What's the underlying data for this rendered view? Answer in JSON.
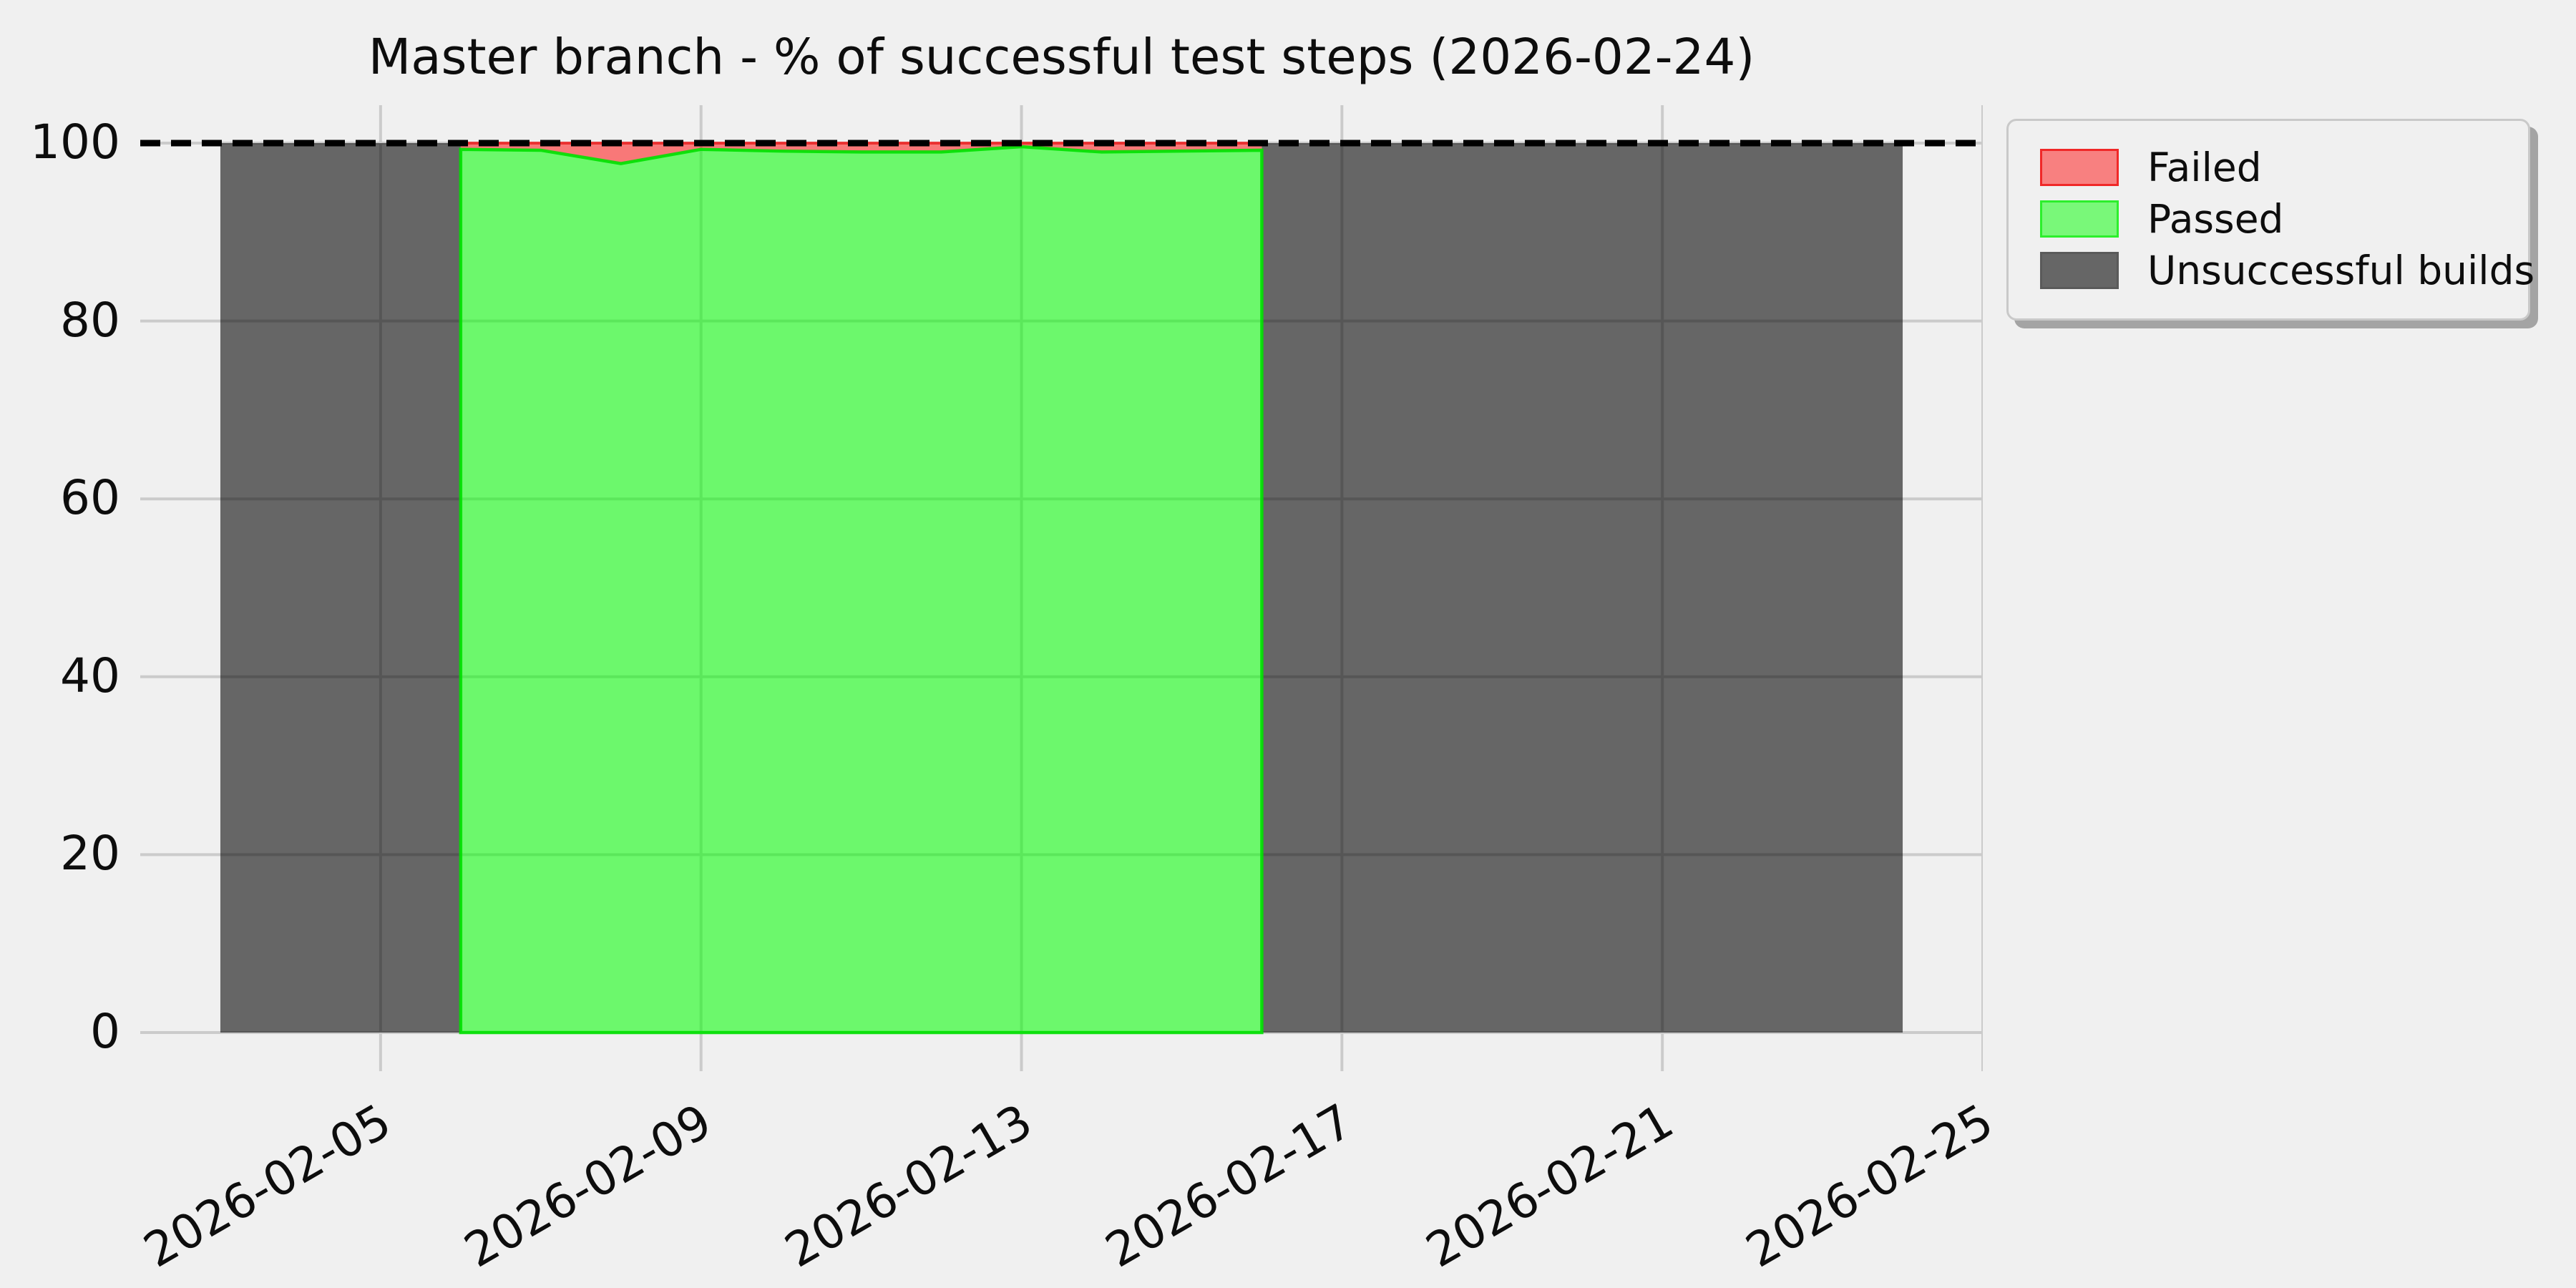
{
  "title": "Master branch - % of successful test steps (2026-02-24)",
  "chart_data": {
    "type": "area",
    "title": "Master branch - % of successful test steps (2026-02-24)",
    "x_axis": {
      "start_date": "2026-02-02",
      "end_date": "2026-02-25",
      "tick_labels": [
        "2026-02-05",
        "2026-02-09",
        "2026-02-13",
        "2026-02-17",
        "2026-02-21",
        "2026-02-25"
      ],
      "label_rotation_deg": 30
    },
    "y_axis": {
      "min": 0,
      "max": 104.3,
      "tick_values": [
        0,
        20,
        40,
        60,
        80,
        100
      ],
      "tick_labels": [
        "0",
        "20",
        "40",
        "60",
        "80",
        "100"
      ]
    },
    "grid": true,
    "grid_color": "#cbcbcb",
    "background_color": "#f0f0f0",
    "target_line": {
      "value": 100,
      "style": "dashed",
      "color": "#000000"
    },
    "series": [
      {
        "name": "Unsuccessful builds",
        "type": "span",
        "fill": "rgba(0,0,0,0.575)",
        "spans": [
          {
            "from": "2026-02-03",
            "to": "2026-02-06",
            "value": 100
          },
          {
            "from": "2026-02-16",
            "to": "2026-02-24",
            "value": 100
          }
        ]
      },
      {
        "name": "Passed",
        "type": "stacked_area",
        "fill": "rgba(0,255,0,0.55)",
        "edge": "rgba(0,225,0,0.9)",
        "dates": [
          "2026-02-06",
          "2026-02-07",
          "2026-02-08",
          "2026-02-09",
          "2026-02-10",
          "2026-02-11",
          "2026-02-12",
          "2026-02-13",
          "2026-02-14",
          "2026-02-15",
          "2026-02-16"
        ],
        "values": [
          99.3,
          99.2,
          97.7,
          99.3,
          99.1,
          99.0,
          99.0,
          99.6,
          99.0,
          99.1,
          99.2
        ]
      },
      {
        "name": "Failed",
        "type": "stacked_area",
        "stacked_on": "Passed",
        "stack_top": 100,
        "fill": "rgba(255,10,10,0.52)",
        "edge": "rgba(235,40,40,0.9)",
        "dates": [
          "2026-02-06",
          "2026-02-07",
          "2026-02-08",
          "2026-02-09",
          "2026-02-10",
          "2026-02-11",
          "2026-02-12",
          "2026-02-13",
          "2026-02-14",
          "2026-02-15",
          "2026-02-16"
        ],
        "values": [
          0.7,
          0.8,
          2.3,
          0.7,
          0.9,
          1.0,
          1.0,
          0.4,
          1.0,
          0.9,
          0.8
        ]
      }
    ],
    "legend": {
      "position": "upper right",
      "items": [
        {
          "label": "Failed",
          "fill": "#f88080",
          "edge": "#f02828"
        },
        {
          "label": "Passed",
          "fill": "#79f879",
          "edge": "#2cef2c"
        },
        {
          "label": "Unsuccessful builds",
          "fill": "#666666",
          "edge": "#5a5a5a"
        }
      ]
    }
  }
}
